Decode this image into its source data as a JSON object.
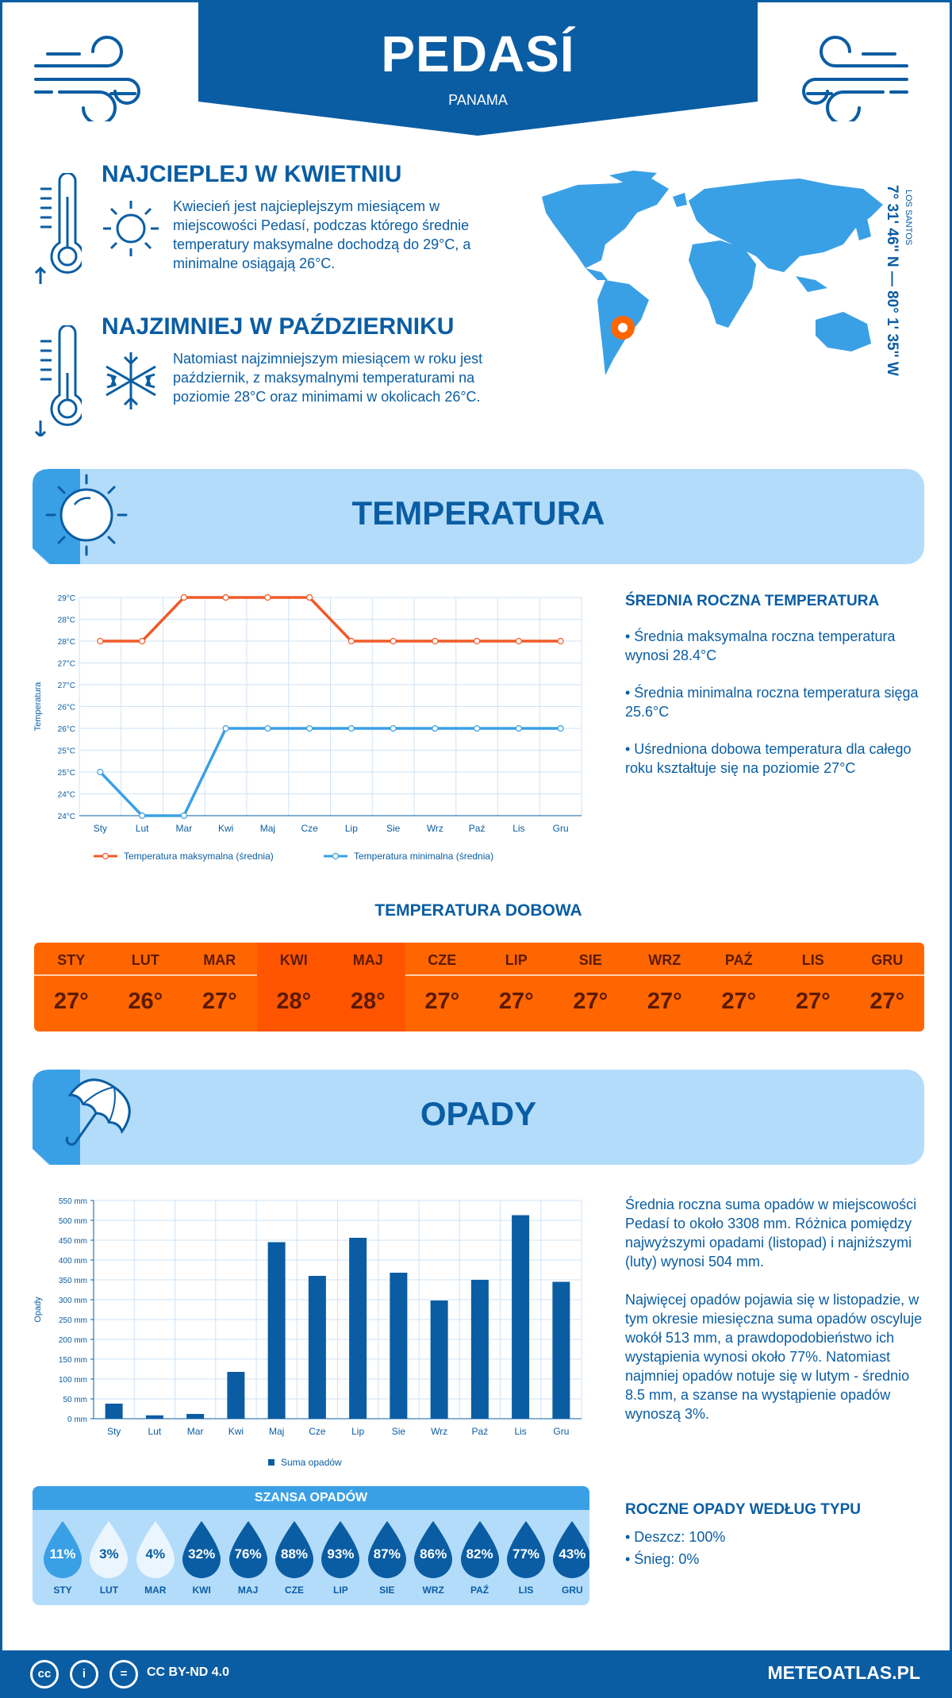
{
  "header": {
    "city": "PEDASÍ",
    "country": "PANAMA"
  },
  "hottest": {
    "title": "NAJCIEPLEJ W KWIETNIU",
    "text": "Kwiecień jest najcieplejszym miesiącem w miejscowości Pedasí, podczas którego średnie temperatury maksymalne dochodzą do 29°C, a minimalne osiągają 26°C."
  },
  "coldest": {
    "title": "NAJZIMNIEJ W PAŹDZIERNIKU",
    "text": "Natomiast najzimniejszym miesiącem w roku jest październik, z maksymalnymi temperaturami na poziomie 28°C oraz minimami w okolicach 26°C."
  },
  "coords": {
    "main": "7° 31' 46'' N — 80° 1' 35'' W",
    "region": "LOS SANTOS"
  },
  "temperature": {
    "section_title": "TEMPERATURA",
    "side_title": "ŚREDNIA ROCZNA TEMPERATURA",
    "bullets": [
      "• Średnia maksymalna roczna temperatura wynosi 28.4°C",
      "• Średnia minimalna roczna temperatura sięga 25.6°C",
      "• Uśredniona dobowa temperatura dla całego roku kształtuje się na poziomie 27°C"
    ]
  },
  "daily": {
    "title": "TEMPERATURA DOBOWA",
    "months": [
      "STY",
      "LUT",
      "MAR",
      "KWI",
      "MAJ",
      "CZE",
      "LIP",
      "SIE",
      "WRZ",
      "PAŹ",
      "LIS",
      "GRU"
    ],
    "temps": [
      "27°",
      "26°",
      "27°",
      "28°",
      "28°",
      "27°",
      "27°",
      "27°",
      "27°",
      "27°",
      "27°",
      "27°"
    ]
  },
  "precip": {
    "section_title": "OPADY",
    "text1": "Średnia roczna suma opadów w miejscowości Pedasí to około 3308 mm. Różnica pomiędzy najwyższymi opadami (listopad) i najniższymi (luty) wynosi 504 mm.",
    "text2": "Najwięcej opadów pojawia się w listopadzie, w tym okresie miesięczna suma opadów oscyluje wokół 513 mm, a prawdopodobieństwo ich wystąpienia wynosi około 77%. Natomiast najmniej opadów notuje się w lutym - średnio 8.5 mm, a szanse na wystąpienie opadów wynoszą 3%.",
    "type_title": "ROCZNE OPADY WEDŁUG TYPU",
    "types": [
      "• Deszcz: 100%",
      "• Śnieg: 0%"
    ]
  },
  "chance": {
    "title": "SZANSA OPADÓW",
    "months": [
      "STY",
      "LUT",
      "MAR",
      "KWI",
      "MAJ",
      "CZE",
      "LIP",
      "SIE",
      "WRZ",
      "PAŹ",
      "LIS",
      "GRU"
    ],
    "values": [
      "11%",
      "3%",
      "4%",
      "32%",
      "76%",
      "88%",
      "93%",
      "87%",
      "86%",
      "82%",
      "77%",
      "43%"
    ]
  },
  "footer": {
    "license": "CC BY-ND 4.0",
    "site": "METEOATLAS.PL"
  },
  "colors": {
    "primary": "#0a5da3",
    "light": "#b3dcfb",
    "orange": "#ff6600",
    "max_line": "#f05a28",
    "min_line": "#3aa0e6"
  },
  "chart_data": [
    {
      "type": "line",
      "ylabel": "Temperatura",
      "categories": [
        "Sty",
        "Lut",
        "Mar",
        "Kwi",
        "Maj",
        "Cze",
        "Lip",
        "Sie",
        "Wrz",
        "Paź",
        "Lis",
        "Gru"
      ],
      "yticks": [
        "24°C",
        "24°C",
        "25°C",
        "25°C",
        "26°C",
        "26°C",
        "27°C",
        "27°C",
        "28°C",
        "28°C",
        "29°C"
      ],
      "ylim": [
        24,
        29
      ],
      "series": [
        {
          "name": "Temperatura maksymalna (średnia)",
          "values": [
            28,
            28,
            29,
            29,
            29,
            29,
            28,
            28,
            28,
            28,
            28,
            28
          ]
        },
        {
          "name": "Temperatura minimalna (średnia)",
          "values": [
            25,
            24,
            24,
            26,
            26,
            26,
            26,
            26,
            26,
            26,
            26,
            26
          ]
        }
      ],
      "legend": "bottom"
    },
    {
      "type": "bar",
      "ylabel": "Opady",
      "categories": [
        "Sty",
        "Lut",
        "Mar",
        "Kwi",
        "Maj",
        "Cze",
        "Lip",
        "Sie",
        "Wrz",
        "Paź",
        "Lis",
        "Gru"
      ],
      "yticks": [
        "0 mm",
        "50 mm",
        "100 mm",
        "150 mm",
        "200 mm",
        "250 mm",
        "300 mm",
        "350 mm",
        "400 mm",
        "450 mm",
        "500 mm",
        "550 mm"
      ],
      "ylim": [
        0,
        550
      ],
      "series": [
        {
          "name": "Suma opadów",
          "values": [
            38,
            8.5,
            12,
            118,
            445,
            360,
            456,
            368,
            298,
            350,
            513,
            345
          ]
        }
      ],
      "legend": "bottom"
    }
  ]
}
